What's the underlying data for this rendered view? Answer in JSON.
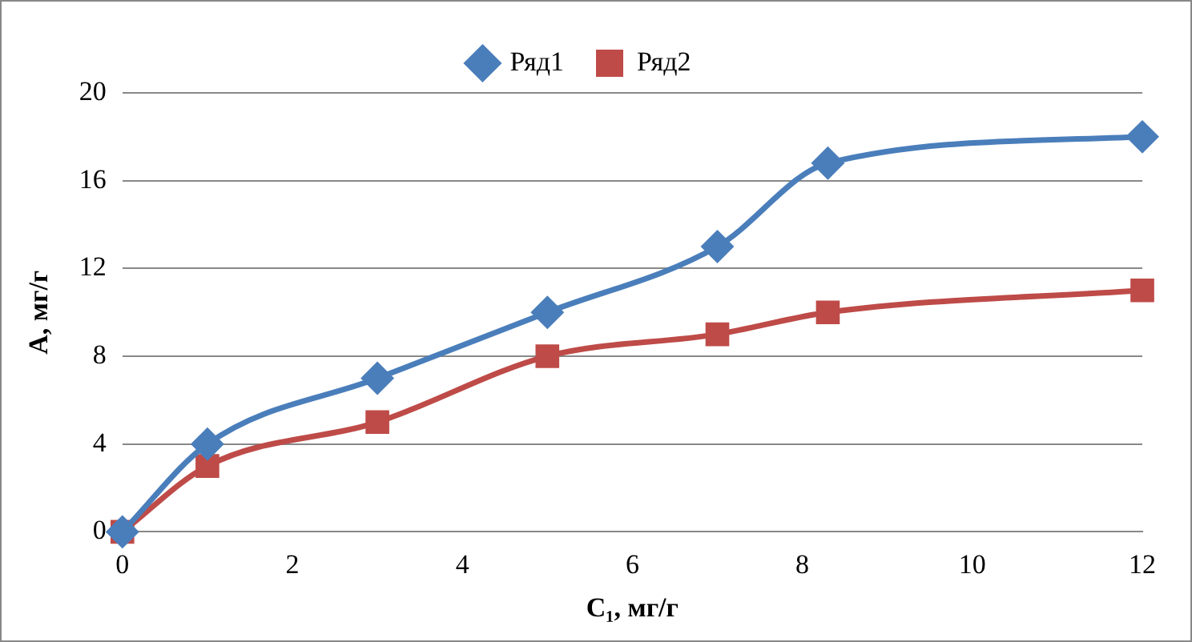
{
  "chart_data": {
    "type": "line",
    "xlabel": "C₁, мг/г",
    "ylabel": "А, мг/г",
    "xlim": [
      0,
      12
    ],
    "xticks": [
      0,
      2,
      4,
      6,
      8,
      10,
      12
    ],
    "ylim": [
      0,
      20
    ],
    "yticks": [
      0,
      4,
      8,
      12,
      16,
      20
    ],
    "grid": "y",
    "legend": "top",
    "line_style": "solid",
    "series": [
      {
        "name": "Ряд1",
        "color": "#4a7ebb",
        "marker": "diamond",
        "x": [
          0,
          1,
          3,
          5,
          7,
          8.3,
          12
        ],
        "values": [
          0,
          4,
          7,
          10,
          13,
          16.8,
          18
        ]
      },
      {
        "name": "Ряд2",
        "color": "#be4b48",
        "marker": "square",
        "x": [
          0,
          1,
          3,
          5,
          7,
          8.3,
          12
        ],
        "values": [
          0,
          3,
          5,
          8,
          9,
          10,
          11
        ]
      }
    ]
  }
}
